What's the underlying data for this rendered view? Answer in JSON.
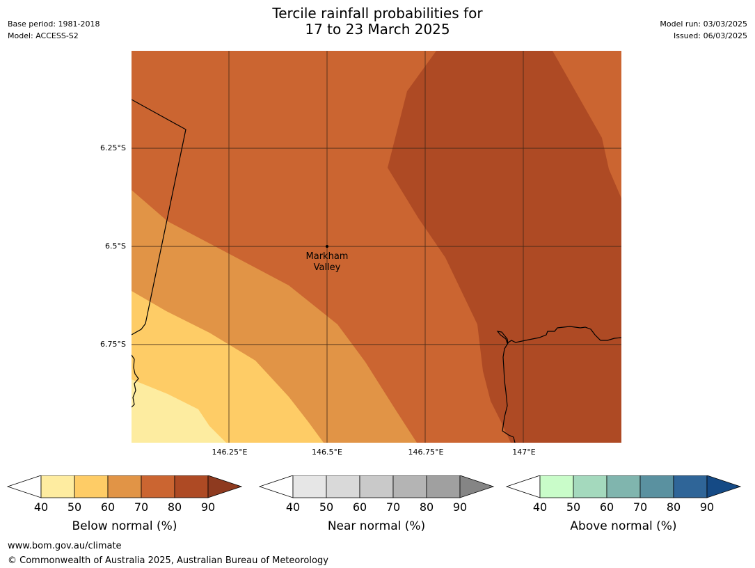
{
  "header": {
    "title_line1": "Tercile rainfall probabilities for",
    "title_line2": "17 to 23 March 2025",
    "base_period": "Base period: 1981-2018",
    "model": "Model: ACCESS-S2",
    "model_run": "Model run: 03/03/2025",
    "issued": "Issued: 06/03/2025"
  },
  "map": {
    "lat_labels": [
      "6.25°S",
      "6.5°S",
      "6.75°S"
    ],
    "lon_labels": [
      "146.25°E",
      "146.5°E",
      "146.75°E",
      "147°E"
    ],
    "location": {
      "name_line1": "Markham",
      "name_line2": "Valley"
    },
    "zone_colors": {
      "below_40_50": "#fdeca0",
      "below_50_60": "#fecc66",
      "below_60_70": "#e19446",
      "below_70_80": "#cb6531",
      "below_80_90": "#ae4a24"
    }
  },
  "legends": [
    {
      "title": "Below normal (%)",
      "ticks": [
        "40",
        "50",
        "60",
        "70",
        "80",
        "90"
      ],
      "colors": [
        "#ffffff",
        "#feeca0",
        "#fecc66",
        "#e19446",
        "#cb6531",
        "#ae4a24",
        "#8e3a1f"
      ]
    },
    {
      "title": "Near normal (%)",
      "ticks": [
        "40",
        "50",
        "60",
        "70",
        "80",
        "90"
      ],
      "colors": [
        "#ffffff",
        "#e6e6e6",
        "#d9d9d9",
        "#c9c9c9",
        "#b4b4b4",
        "#a0a0a0",
        "#858585"
      ]
    },
    {
      "title": "Above normal (%)",
      "ticks": [
        "40",
        "50",
        "60",
        "70",
        "80",
        "90"
      ],
      "colors": [
        "#ffffff",
        "#c9fcc9",
        "#a4d9bd",
        "#80b5ae",
        "#5a91a0",
        "#2f6598",
        "#154a85"
      ]
    }
  ],
  "footer": {
    "url": "www.bom.gov.au/climate",
    "copyright": "© Commonwealth of Australia 2025, Australian Bureau of Meteorology"
  }
}
